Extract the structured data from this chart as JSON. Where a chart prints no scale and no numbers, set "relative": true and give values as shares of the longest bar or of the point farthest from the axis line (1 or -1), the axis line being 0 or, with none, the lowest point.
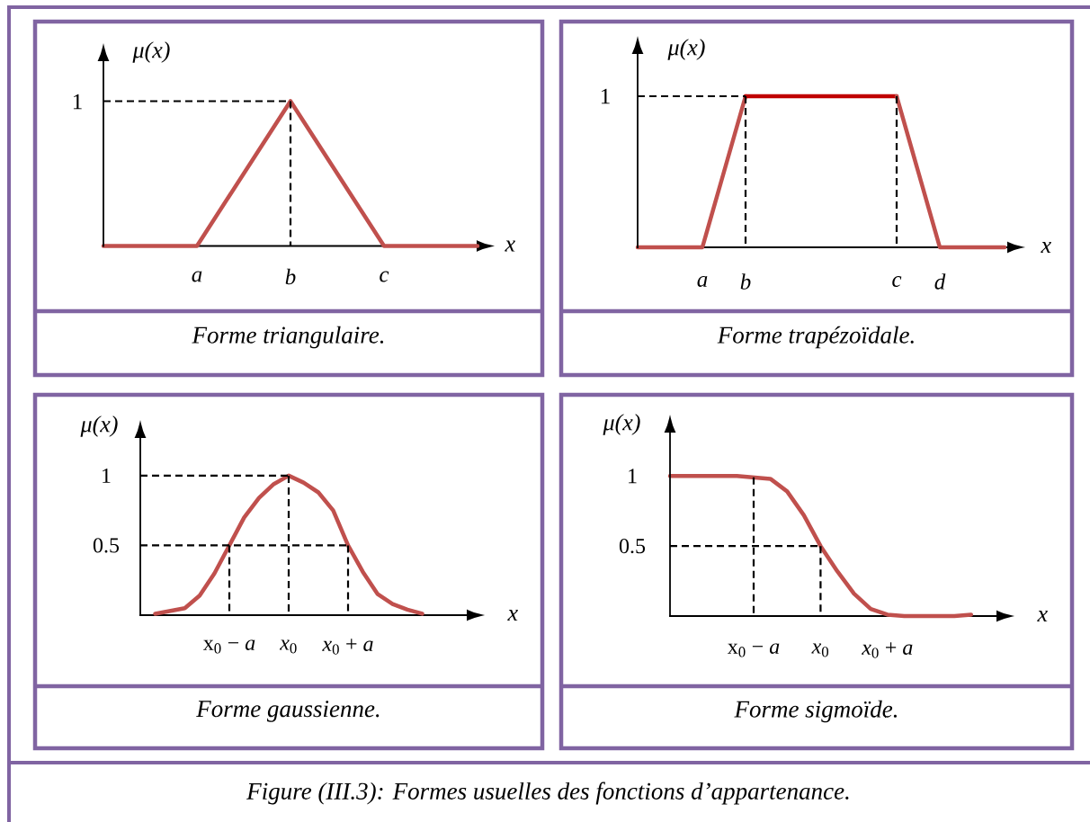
{
  "chart_data": [
    {
      "type": "line",
      "relative": true,
      "title": "Forme triangulaire.",
      "xlabel": "x",
      "ylabel": "μ(x)",
      "categories": [
        null,
        "a",
        "b",
        "c",
        null
      ],
      "annotations": [
        "1"
      ],
      "series": [
        {
          "color": "#c0504d",
          "values": [
            0,
            0,
            1,
            0,
            0
          ]
        },
        {
          "color": "#000000",
          "line_style": "dashed",
          "values": [
            1,
            1,
            1,
            null,
            null
          ]
        },
        {
          "color": "#000000",
          "line_style": "dashed",
          "x": [
            "b",
            "b"
          ],
          "values": [
            1,
            0
          ]
        }
      ]
    },
    {
      "type": "line",
      "relative": true,
      "title": "Forme trapézoïdale.",
      "xlabel": "x",
      "ylabel": "μ(x)",
      "categories": [
        null,
        null,
        null,
        "a",
        null,
        "b",
        null,
        null,
        null,
        null,
        null,
        null,
        "c",
        null,
        "d",
        null,
        null,
        null
      ],
      "annotations": [
        "1"
      ],
      "series": [
        {
          "color": "#c0504d",
          "values": [
            0,
            0,
            0,
            0,
            0.5,
            1,
            null,
            null,
            null,
            null,
            null,
            null,
            null,
            null,
            null,
            null,
            null,
            null
          ]
        },
        {
          "color": "#c00000",
          "values": [
            null,
            null,
            null,
            null,
            null,
            1,
            1,
            1,
            1,
            1,
            1,
            1,
            1,
            null,
            null,
            null,
            null,
            null
          ]
        },
        {
          "color": "#c0504d",
          "values": [
            null,
            null,
            null,
            null,
            null,
            null,
            null,
            null,
            null,
            null,
            null,
            null,
            1,
            0.5,
            0,
            0,
            0,
            0
          ]
        },
        {
          "color": "#000000",
          "line_style": "dashed",
          "values": [
            1,
            1,
            1,
            1,
            1,
            1,
            null,
            null,
            null,
            null,
            null,
            null,
            null,
            null,
            null,
            null,
            null,
            null
          ]
        },
        {
          "color": "#000000",
          "line_style": "dashed",
          "x": [
            "b",
            "b"
          ],
          "values": [
            1,
            0
          ]
        },
        {
          "color": "#000000",
          "line_style": "dashed",
          "x": [
            "c",
            "c"
          ],
          "values": [
            1,
            0
          ]
        }
      ]
    },
    {
      "type": "line",
      "title": "Forme gaussienne.",
      "xlabel": "x",
      "ylabel": "μ(x)",
      "categories": [
        null,
        null,
        null,
        null,
        null,
        null,
        "x$_{0}$ − *a*",
        null,
        null,
        null,
        "*x*$_{0}$",
        null,
        null,
        null,
        "*x*$_{0}$ + *a*",
        null,
        null,
        null,
        null,
        null
      ],
      "ylim": [
        0,
        1.27
      ],
      "yticks": [
        0.5,
        1
      ],
      "series": [
        {
          "color": "#c0504d",
          "values": [
            null,
            0.01,
            0.03,
            0.05,
            0.14,
            0.3,
            0.5,
            0.7,
            0.84,
            0.94,
            1,
            0.95,
            0.88,
            0.75,
            0.5,
            0.31,
            0.15,
            0.08,
            0.04,
            0.01
          ]
        },
        {
          "color": "#000000",
          "line_style": "dashed",
          "values": [
            1,
            1,
            1,
            1,
            1,
            1,
            1,
            1,
            1,
            1,
            1,
            null,
            null,
            null,
            null,
            null,
            null,
            null,
            null,
            null
          ]
        },
        {
          "color": "#000000",
          "line_style": "dashed",
          "values": [
            0.5,
            0.5,
            0.5,
            0.5,
            0.5,
            0.5,
            0.5,
            0.5,
            0.5,
            0.5,
            0.5,
            0.5,
            0.5,
            0.5,
            0.5,
            null,
            null,
            null,
            null,
            null
          ]
        },
        {
          "color": "#000000",
          "line_style": "dashed",
          "x": [
            "x$_{0}$ − *a*",
            "x$_{0}$ − *a*"
          ],
          "values": [
            0.5,
            0
          ]
        },
        {
          "color": "#000000",
          "line_style": "dashed",
          "x": [
            "*x*$_{0}$",
            "*x*$_{0}$"
          ],
          "values": [
            1,
            0
          ]
        },
        {
          "color": "#000000",
          "line_style": "dashed",
          "x": [
            "*x*$_{0}$ + *a*",
            "*x*$_{0}$ + *a*"
          ],
          "values": [
            0.5,
            0
          ]
        }
      ]
    },
    {
      "type": "line",
      "title": "Forme sigmoïde.",
      "xlabel": "x",
      "ylabel": "μ(x)",
      "categories": [
        null,
        null,
        null,
        null,
        null,
        "x$_{0}$ − *a*",
        null,
        null,
        null,
        "*x*$_{0}$",
        null,
        null,
        null,
        "*x*$_{0}$ + *a*",
        null,
        null,
        null,
        null,
        null
      ],
      "ylim": [
        0,
        1.31
      ],
      "yticks": [
        0.5,
        1
      ],
      "series": [
        {
          "color": "#c0504d",
          "values": [
            1,
            1,
            1,
            1,
            1,
            0.99,
            0.98,
            0.89,
            0.72,
            0.5,
            0.32,
            0.16,
            0.05,
            0.01,
            0,
            0,
            0,
            0,
            0.01
          ]
        },
        {
          "color": "#000000",
          "line_style": "dashed",
          "values": [
            0.5,
            0.5,
            0.5,
            0.5,
            0.5,
            0.5,
            0.5,
            0.5,
            0.5,
            0.5,
            null,
            null,
            null,
            null,
            null,
            null,
            null,
            null,
            null
          ]
        },
        {
          "color": "#000000",
          "line_style": "dashed",
          "x": [
            "x$_{0}$ − *a*",
            "x$_{0}$ − *a*"
          ],
          "values": [
            0.99,
            0
          ]
        },
        {
          "color": "#000000",
          "line_style": "dashed",
          "x": [
            "*x*$_{0}$",
            "*x*$_{0}$"
          ],
          "values": [
            0.5,
            0
          ]
        }
      ]
    },
    {
      "type": "other",
      "title": "Figure (III.3): Formes usuelles des fonctions d’appartenance."
    }
  ]
}
